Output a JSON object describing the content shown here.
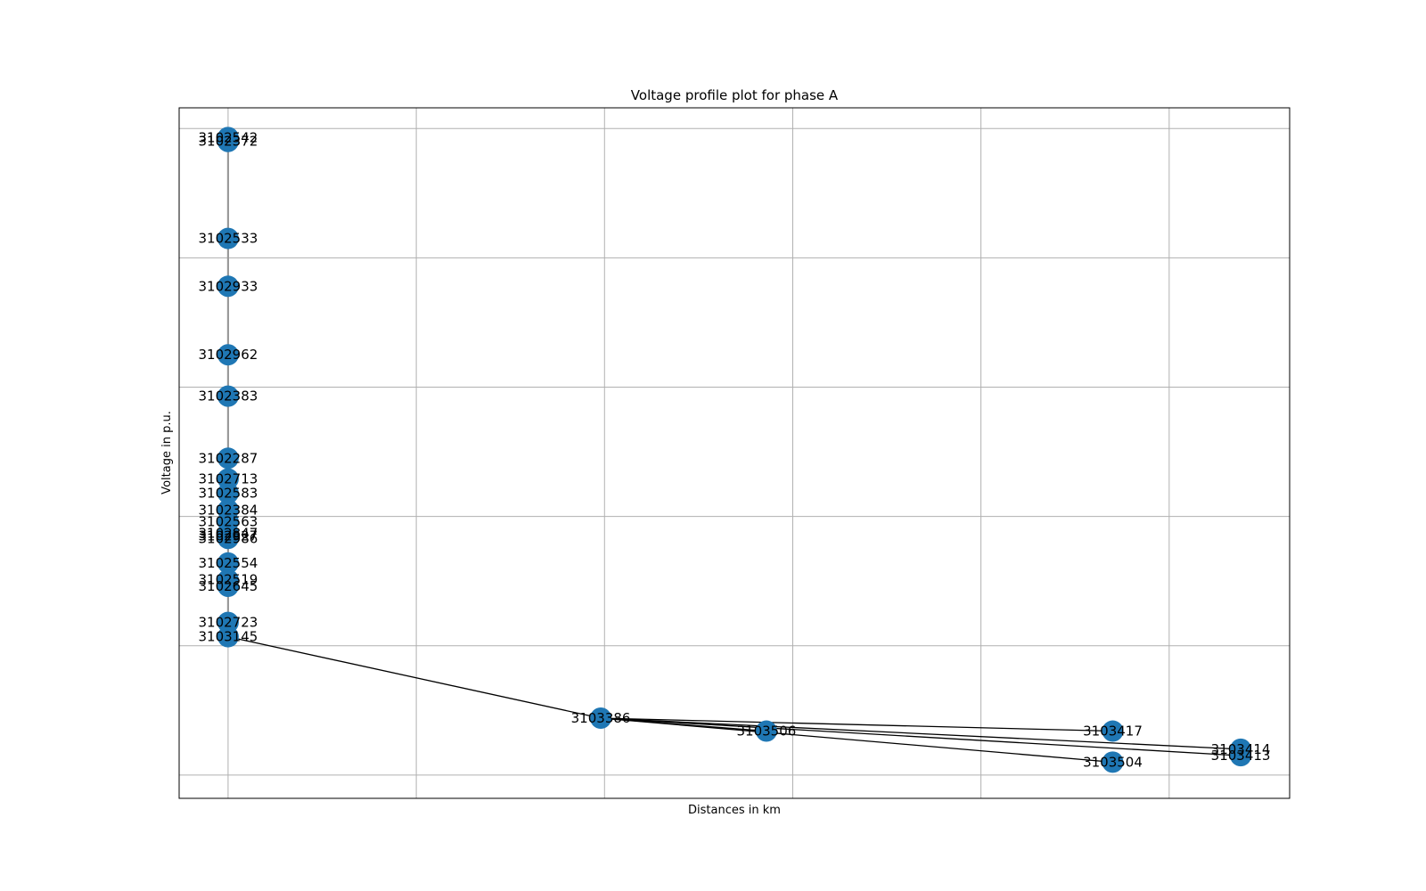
{
  "colors": {
    "node": "#1f77b4",
    "edge": "#000000",
    "grid": "#b0b0b0"
  },
  "chart_data": {
    "type": "scatter",
    "title": "Voltage profile plot for phase A",
    "xlabel": "Distances in km",
    "ylabel": "Voltage in p.u.",
    "grid": true,
    "x_ticks": [
      0.0,
      0.5,
      1.0,
      1.5,
      2.0,
      2.5
    ],
    "y_ticks": [
      0.96,
      0.97,
      0.98,
      0.99,
      1.0,
      1.01
    ],
    "xlim": [
      -0.13,
      2.82
    ],
    "ylim": [
      0.9582,
      1.0116
    ],
    "nodes": [
      {
        "name": "3102542",
        "x": 0.0,
        "y": 1.0093
      },
      {
        "name": "3102372",
        "x": 0.0,
        "y": 1.009
      },
      {
        "name": "3102533",
        "x": 0.0,
        "y": 1.0015
      },
      {
        "name": "3102933",
        "x": 0.0,
        "y": 0.9978
      },
      {
        "name": "3102962",
        "x": 0.0,
        "y": 0.9925
      },
      {
        "name": "3102383",
        "x": 0.0,
        "y": 0.9893
      },
      {
        "name": "3102287",
        "x": 0.0,
        "y": 0.9845
      },
      {
        "name": "3102713",
        "x": 0.0,
        "y": 0.9829
      },
      {
        "name": "3102583",
        "x": 0.0,
        "y": 0.9818
      },
      {
        "name": "3102384",
        "x": 0.0,
        "y": 0.9805
      },
      {
        "name": "3102563",
        "x": 0.0,
        "y": 0.9796
      },
      {
        "name": "3102847",
        "x": 0.0,
        "y": 0.9787
      },
      {
        "name": "3102927",
        "x": 0.0,
        "y": 0.9785
      },
      {
        "name": "3102986",
        "x": 0.0,
        "y": 0.9783
      },
      {
        "name": "3102554",
        "x": 0.0,
        "y": 0.9764
      },
      {
        "name": "3102519",
        "x": 0.0,
        "y": 0.9751
      },
      {
        "name": "3102645",
        "x": 0.0,
        "y": 0.9746
      },
      {
        "name": "3102723",
        "x": 0.0,
        "y": 0.9718
      },
      {
        "name": "3103145",
        "x": 0.0,
        "y": 0.9707
      },
      {
        "name": "3103386",
        "x": 0.99,
        "y": 0.9644
      },
      {
        "name": "3103506",
        "x": 1.43,
        "y": 0.9634
      },
      {
        "name": "3103417",
        "x": 2.35,
        "y": 0.9634
      },
      {
        "name": "3103414",
        "x": 2.69,
        "y": 0.962
      },
      {
        "name": "3103413",
        "x": 2.69,
        "y": 0.9615
      },
      {
        "name": "3103504",
        "x": 2.35,
        "y": 0.961
      }
    ],
    "edges": [
      [
        "3102542",
        "3102372"
      ],
      [
        "3102372",
        "3102533"
      ],
      [
        "3102533",
        "3102933"
      ],
      [
        "3102933",
        "3102962"
      ],
      [
        "3102962",
        "3102383"
      ],
      [
        "3102383",
        "3102287"
      ],
      [
        "3102287",
        "3102713"
      ],
      [
        "3102713",
        "3102583"
      ],
      [
        "3102583",
        "3102384"
      ],
      [
        "3102384",
        "3102563"
      ],
      [
        "3102563",
        "3102847"
      ],
      [
        "3102847",
        "3102927"
      ],
      [
        "3102927",
        "3102986"
      ],
      [
        "3102986",
        "3102554"
      ],
      [
        "3102554",
        "3102519"
      ],
      [
        "3102519",
        "3102645"
      ],
      [
        "3102645",
        "3102723"
      ],
      [
        "3102723",
        "3103145"
      ],
      [
        "3103145",
        "3103386"
      ],
      [
        "3103386",
        "3103506"
      ],
      [
        "3103386",
        "3103417"
      ],
      [
        "3103386",
        "3103414"
      ],
      [
        "3103386",
        "3103413"
      ],
      [
        "3103386",
        "3103504"
      ]
    ]
  }
}
